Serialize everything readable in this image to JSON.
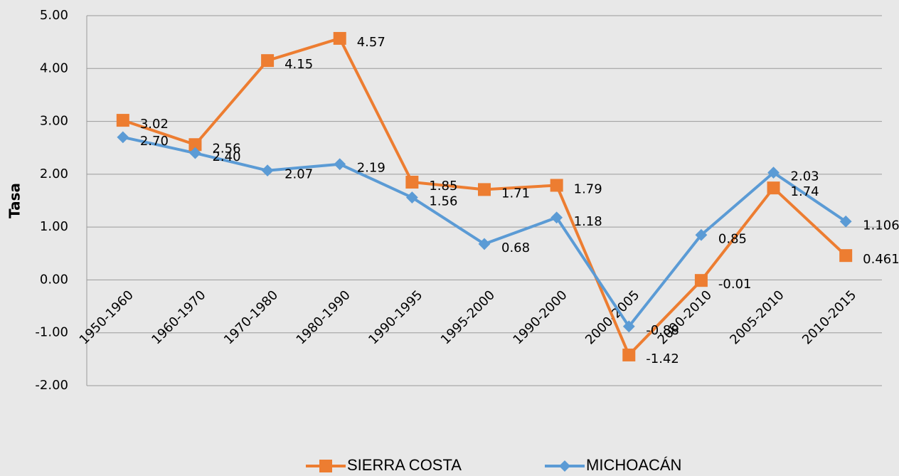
{
  "chart_data": {
    "type": "line",
    "y_label": "Tasa",
    "categories": [
      "1950-1960",
      "1960-1970",
      "1970-1980",
      "1980-1990",
      "1990-1995",
      "1995-2000",
      "1990-2000",
      "2000-2005",
      "2000-2010",
      "2005-2010",
      "2010-2015"
    ],
    "series": [
      {
        "name": "SIERRA COSTA",
        "color": "#ed7d31",
        "marker": "square",
        "values": [
          3.02,
          2.56,
          4.15,
          4.57,
          1.85,
          1.71,
          1.79,
          -1.42,
          -0.01,
          1.74,
          0.461
        ],
        "value_labels": [
          "3.02",
          "2.56",
          "4.15",
          "4.57",
          "1.85",
          "1.71",
          "1.79",
          "-1.42",
          "-0.01",
          "1.74",
          "0.461"
        ]
      },
      {
        "name": "MICHOACÁN",
        "color": "#5b9bd5",
        "marker": "diamond",
        "values": [
          2.7,
          2.4,
          2.07,
          2.19,
          1.56,
          0.68,
          1.18,
          -0.88,
          0.85,
          2.03,
          1.106
        ],
        "value_labels": [
          "2.70",
          "2.40",
          "2.07",
          "2.19",
          "1.56",
          "0.68",
          "1.18",
          "-0.88",
          "0.85",
          "2.03",
          "1.106"
        ]
      }
    ],
    "ylim": [
      -2,
      5
    ],
    "yticks": [
      {
        "value": -2,
        "label": "-2.00"
      },
      {
        "value": -1,
        "label": "-1.00"
      },
      {
        "value": 0,
        "label": "0.00"
      },
      {
        "value": 1,
        "label": "1.00"
      },
      {
        "value": 2,
        "label": "2.00"
      },
      {
        "value": 3,
        "label": "3.00"
      },
      {
        "value": 4,
        "label": "4.00"
      },
      {
        "value": 5,
        "label": "5.00"
      }
    ],
    "grid": true,
    "legend": "bottom"
  }
}
